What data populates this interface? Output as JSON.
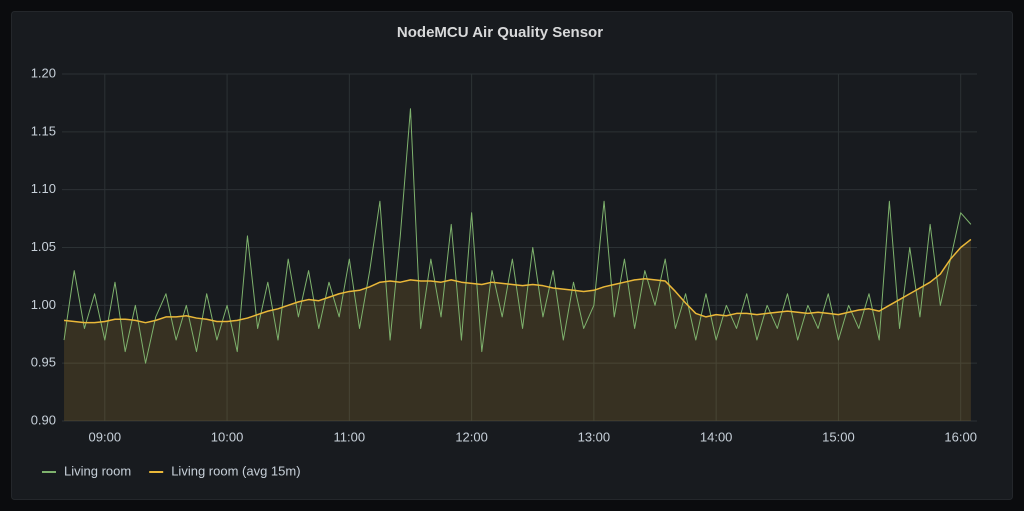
{
  "chart_data": {
    "type": "line",
    "title": "NodeMCU Air Quality Sensor",
    "x": [
      "08:40",
      "08:45",
      "08:50",
      "08:55",
      "09:00",
      "09:05",
      "09:10",
      "09:15",
      "09:20",
      "09:25",
      "09:30",
      "09:35",
      "09:40",
      "09:45",
      "09:50",
      "09:55",
      "10:00",
      "10:05",
      "10:10",
      "10:15",
      "10:20",
      "10:25",
      "10:30",
      "10:35",
      "10:40",
      "10:45",
      "10:50",
      "10:55",
      "11:00",
      "11:05",
      "11:10",
      "11:15",
      "11:20",
      "11:25",
      "11:30",
      "11:35",
      "11:40",
      "11:45",
      "11:50",
      "11:55",
      "12:00",
      "12:05",
      "12:10",
      "12:15",
      "12:20",
      "12:25",
      "12:30",
      "12:35",
      "12:40",
      "12:45",
      "12:50",
      "12:55",
      "13:00",
      "13:05",
      "13:10",
      "13:15",
      "13:20",
      "13:25",
      "13:30",
      "13:35",
      "13:40",
      "13:45",
      "13:50",
      "13:55",
      "14:00",
      "14:05",
      "14:10",
      "14:15",
      "14:20",
      "14:25",
      "14:30",
      "14:35",
      "14:40",
      "14:45",
      "14:50",
      "14:55",
      "15:00",
      "15:05",
      "15:10",
      "15:15",
      "15:20",
      "15:25",
      "15:30",
      "15:35",
      "15:40",
      "15:45",
      "15:50",
      "15:55",
      "16:00",
      "16:05"
    ],
    "series": [
      {
        "name": "Living room",
        "color": "#7eb26d",
        "values": [
          0.97,
          1.03,
          0.98,
          1.01,
          0.97,
          1.02,
          0.96,
          1.0,
          0.95,
          0.99,
          1.01,
          0.97,
          1.0,
          0.96,
          1.01,
          0.97,
          1.0,
          0.96,
          1.06,
          0.98,
          1.02,
          0.97,
          1.04,
          0.99,
          1.03,
          0.98,
          1.02,
          0.99,
          1.04,
          0.98,
          1.03,
          1.09,
          0.97,
          1.06,
          1.17,
          0.98,
          1.04,
          0.99,
          1.07,
          0.97,
          1.08,
          0.96,
          1.03,
          0.99,
          1.04,
          0.98,
          1.05,
          0.99,
          1.03,
          0.97,
          1.02,
          0.98,
          1.0,
          1.09,
          0.99,
          1.04,
          0.98,
          1.03,
          1.0,
          1.04,
          0.98,
          1.01,
          0.97,
          1.01,
          0.97,
          1.0,
          0.98,
          1.01,
          0.97,
          1.0,
          0.98,
          1.01,
          0.97,
          1.0,
          0.98,
          1.01,
          0.97,
          1.0,
          0.98,
          1.01,
          0.97,
          1.09,
          0.98,
          1.05,
          0.99,
          1.07,
          1.0,
          1.04,
          1.08,
          1.07
        ]
      },
      {
        "name": "Living room (avg 15m)",
        "color": "#eab839",
        "values": [
          0.987,
          0.986,
          0.985,
          0.985,
          0.986,
          0.988,
          0.988,
          0.987,
          0.985,
          0.987,
          0.99,
          0.99,
          0.991,
          0.989,
          0.988,
          0.986,
          0.986,
          0.987,
          0.989,
          0.992,
          0.995,
          0.997,
          1.0,
          1.003,
          1.005,
          1.004,
          1.007,
          1.01,
          1.012,
          1.013,
          1.016,
          1.02,
          1.021,
          1.02,
          1.022,
          1.021,
          1.021,
          1.02,
          1.022,
          1.02,
          1.019,
          1.018,
          1.02,
          1.019,
          1.018,
          1.017,
          1.018,
          1.017,
          1.015,
          1.014,
          1.013,
          1.012,
          1.013,
          1.016,
          1.018,
          1.02,
          1.022,
          1.023,
          1.022,
          1.021,
          1.012,
          1.002,
          0.993,
          0.99,
          0.992,
          0.991,
          0.993,
          0.993,
          0.992,
          0.993,
          0.994,
          0.995,
          0.994,
          0.993,
          0.994,
          0.993,
          0.992,
          0.994,
          0.996,
          0.997,
          0.995,
          1.0,
          1.005,
          1.01,
          1.015,
          1.02,
          1.027,
          1.04,
          1.05,
          1.057
        ]
      }
    ],
    "xlim": [
      "08:39",
      "16:08"
    ],
    "xticks": [
      "09:00",
      "10:00",
      "11:00",
      "12:00",
      "13:00",
      "14:00",
      "15:00",
      "16:00"
    ],
    "ylim": [
      0.9,
      1.2
    ],
    "yticks": [
      {
        "value": 0.9,
        "label": "0.90"
      },
      {
        "value": 0.95,
        "label": "0.95"
      },
      {
        "value": 1.0,
        "label": "1.00"
      },
      {
        "value": 1.05,
        "label": "1.05"
      },
      {
        "value": 1.1,
        "label": "1.10"
      },
      {
        "value": 1.15,
        "label": "1.15"
      },
      {
        "value": 1.2,
        "label": "1.20"
      }
    ],
    "grid": true
  }
}
